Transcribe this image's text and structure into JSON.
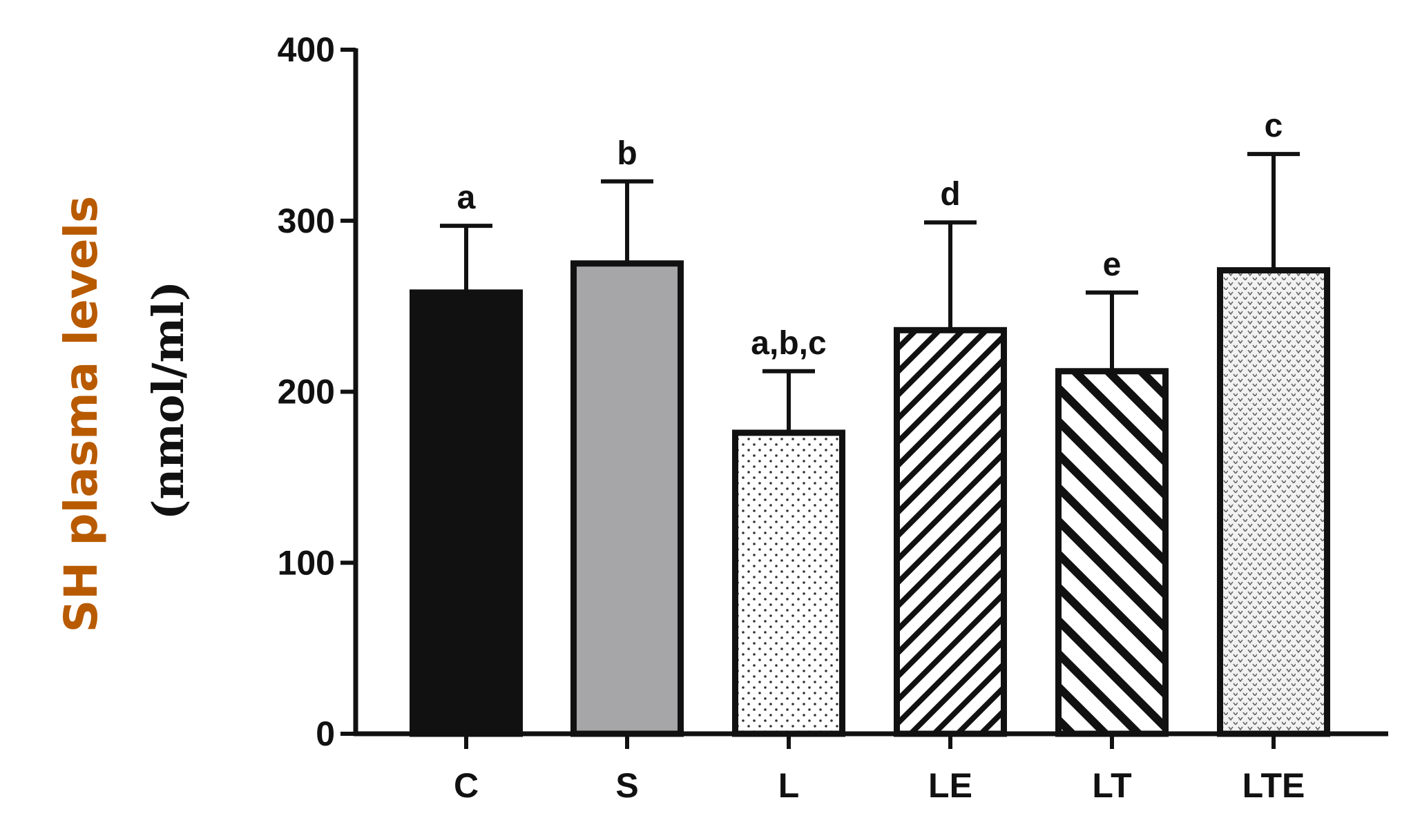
{
  "chart_data": {
    "type": "bar",
    "ylabel": "SH plasma levels",
    "ylabel_unit": "(nmol/ml)",
    "ylim": [
      0,
      400
    ],
    "yticks": [
      0,
      100,
      200,
      300,
      400
    ],
    "grid": false,
    "categories": [
      "C",
      "S",
      "L",
      "LE",
      "LT",
      "LTE"
    ],
    "values": [
      258,
      275,
      176,
      236,
      212,
      271
    ],
    "error_upper": [
      297,
      323,
      212,
      299,
      258,
      339
    ],
    "significance_labels": [
      "a",
      "b",
      "a,b,c",
      "d",
      "e",
      "c"
    ],
    "fills": [
      "solid-black",
      "solid-gray",
      "dots",
      "diagonal-right",
      "diagonal-left",
      "crosshatch-dots"
    ],
    "colors": {
      "ylabel_title": "#b85a00",
      "bar_gray": "#a6a6a8",
      "ink": "#111111"
    }
  }
}
